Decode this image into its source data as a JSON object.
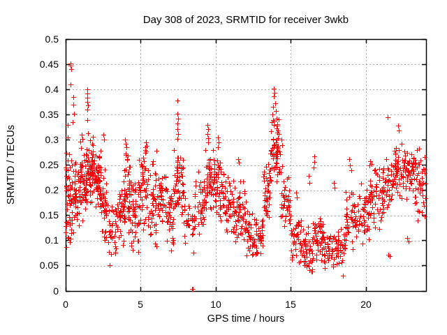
{
  "title": "Day 308 of 2023, SRMTID for receiver 3wkb",
  "chart_data": {
    "type": "scatter",
    "title": "Day 308 of 2023, SRMTID for receiver 3wkb",
    "xlabel": "GPS time / hours",
    "ylabel": "SRMTID / TECUs",
    "xlim": [
      0,
      24
    ],
    "ylim": [
      0,
      0.5
    ],
    "xticks": [
      0,
      5,
      10,
      15,
      20
    ],
    "xtick_labels": [
      "0",
      "5",
      "10",
      "15",
      "20"
    ],
    "yticks": [
      0,
      0.05,
      0.1,
      0.15,
      0.2,
      0.25,
      0.3,
      0.35,
      0.4,
      0.45,
      0.5
    ],
    "ytick_labels": [
      "0",
      "0.05",
      "0.1",
      "0.15",
      "0.2",
      "0.25",
      "0.3",
      "0.35",
      "0.4",
      "0.45",
      "0.5"
    ],
    "grid": true,
    "legend": "none",
    "marker": "plus",
    "marker_color": "#ff0000",
    "grid_color": "#a8a8a8",
    "border_color": "#000000",
    "seed": 308,
    "density_segments": [
      [
        0.0,
        0.45,
        55,
        0.06,
        0.3
      ],
      [
        0.45,
        0.9,
        40,
        0.09,
        0.28
      ],
      [
        0.9,
        1.35,
        50,
        0.13,
        0.3
      ],
      [
        1.35,
        1.85,
        60,
        0.16,
        0.33
      ],
      [
        1.85,
        2.35,
        55,
        0.15,
        0.29
      ],
      [
        2.35,
        2.85,
        40,
        0.09,
        0.25
      ],
      [
        2.85,
        3.35,
        32,
        0.04,
        0.18
      ],
      [
        3.35,
        3.9,
        38,
        0.09,
        0.22
      ],
      [
        3.9,
        4.35,
        48,
        0.1,
        0.28
      ],
      [
        4.35,
        4.85,
        40,
        0.06,
        0.24
      ],
      [
        4.85,
        5.45,
        48,
        0.11,
        0.29
      ],
      [
        5.45,
        6.1,
        45,
        0.08,
        0.27
      ],
      [
        6.1,
        6.7,
        40,
        0.12,
        0.26
      ],
      [
        6.7,
        7.2,
        35,
        0.07,
        0.22
      ],
      [
        7.2,
        7.85,
        55,
        0.14,
        0.3
      ],
      [
        7.85,
        8.6,
        30,
        0.06,
        0.2
      ],
      [
        8.6,
        9.3,
        42,
        0.1,
        0.24
      ],
      [
        9.3,
        9.95,
        52,
        0.15,
        0.3
      ],
      [
        9.95,
        10.55,
        46,
        0.13,
        0.28
      ],
      [
        10.55,
        11.2,
        42,
        0.1,
        0.24
      ],
      [
        11.2,
        12.0,
        55,
        0.09,
        0.22
      ],
      [
        12.0,
        12.65,
        40,
        0.05,
        0.17
      ],
      [
        12.65,
        13.15,
        32,
        0.07,
        0.16
      ],
      [
        13.15,
        13.65,
        45,
        0.13,
        0.28
      ],
      [
        13.65,
        14.3,
        55,
        0.2,
        0.36
      ],
      [
        14.3,
        15.0,
        42,
        0.11,
        0.25
      ],
      [
        15.0,
        15.7,
        40,
        0.05,
        0.16
      ],
      [
        15.7,
        16.45,
        46,
        0.03,
        0.14
      ],
      [
        16.45,
        17.15,
        45,
        0.05,
        0.15
      ],
      [
        17.15,
        17.9,
        40,
        0.04,
        0.13
      ],
      [
        17.9,
        18.65,
        40,
        0.03,
        0.14
      ],
      [
        18.65,
        19.4,
        46,
        0.08,
        0.21
      ],
      [
        19.4,
        20.2,
        46,
        0.09,
        0.23
      ],
      [
        20.2,
        21.0,
        46,
        0.12,
        0.26
      ],
      [
        21.0,
        21.8,
        50,
        0.13,
        0.28
      ],
      [
        21.8,
        22.6,
        55,
        0.18,
        0.3
      ],
      [
        22.6,
        23.35,
        55,
        0.17,
        0.3
      ],
      [
        23.35,
        23.95,
        40,
        0.14,
        0.29
      ]
    ],
    "outlier_points": [
      [
        0.33,
        0.447
      ],
      [
        0.36,
        0.44
      ],
      [
        0.34,
        0.452
      ],
      [
        0.33,
        0.41
      ],
      [
        0.5,
        0.385
      ],
      [
        0.52,
        0.37
      ],
      [
        0.48,
        0.335
      ],
      [
        0.55,
        0.352
      ],
      [
        0.15,
        0.33
      ],
      [
        0.12,
        0.305
      ],
      [
        1.45,
        0.4
      ],
      [
        1.44,
        0.392
      ],
      [
        1.46,
        0.383
      ],
      [
        1.43,
        0.375
      ],
      [
        1.47,
        0.368
      ],
      [
        1.45,
        0.36
      ],
      [
        1.42,
        0.34
      ],
      [
        1.05,
        0.31
      ],
      [
        1.1,
        0.302
      ],
      [
        2.5,
        0.31
      ],
      [
        2.55,
        0.3
      ],
      [
        3.95,
        0.3
      ],
      [
        4.0,
        0.292
      ],
      [
        4.05,
        0.285
      ],
      [
        5.35,
        0.295
      ],
      [
        5.4,
        0.288
      ],
      [
        5.3,
        0.28
      ],
      [
        6.05,
        0.278
      ],
      [
        7.45,
        0.378
      ],
      [
        7.43,
        0.352
      ],
      [
        7.47,
        0.342
      ],
      [
        7.44,
        0.332
      ],
      [
        7.46,
        0.322
      ],
      [
        7.48,
        0.312
      ],
      [
        7.42,
        0.302
      ],
      [
        8.42,
        0.004
      ],
      [
        8.48,
        0.004
      ],
      [
        9.45,
        0.33
      ],
      [
        9.47,
        0.322
      ],
      [
        9.44,
        0.312
      ],
      [
        9.48,
        0.303
      ],
      [
        9.5,
        0.295
      ],
      [
        10.15,
        0.305
      ],
      [
        10.18,
        0.295
      ],
      [
        10.12,
        0.285
      ],
      [
        11.5,
        0.262
      ],
      [
        11.55,
        0.255
      ],
      [
        13.88,
        0.401
      ],
      [
        13.91,
        0.393
      ],
      [
        13.85,
        0.386
      ],
      [
        13.95,
        0.372
      ],
      [
        13.8,
        0.365
      ],
      [
        14.0,
        0.357
      ],
      [
        13.75,
        0.35
      ],
      [
        14.05,
        0.342
      ],
      [
        13.7,
        0.335
      ],
      [
        14.1,
        0.328
      ],
      [
        14.15,
        0.318
      ],
      [
        14.35,
        0.3
      ],
      [
        14.4,
        0.29
      ],
      [
        15.35,
        0.195
      ],
      [
        15.4,
        0.185
      ],
      [
        16.2,
        0.228
      ],
      [
        16.25,
        0.215
      ],
      [
        16.55,
        0.268
      ],
      [
        16.58,
        0.256
      ],
      [
        16.52,
        0.245
      ],
      [
        17.85,
        0.215
      ],
      [
        17.9,
        0.205
      ],
      [
        18.9,
        0.262
      ],
      [
        18.95,
        0.25
      ],
      [
        19.0,
        0.24
      ],
      [
        20.35,
        0.252
      ],
      [
        21.45,
        0.345
      ],
      [
        21.5,
        0.072
      ],
      [
        21.56,
        0.069
      ],
      [
        22.15,
        0.328
      ],
      [
        22.2,
        0.318
      ],
      [
        22.75,
        0.105
      ],
      [
        22.85,
        0.098
      ],
      [
        23.45,
        0.14
      ]
    ]
  }
}
